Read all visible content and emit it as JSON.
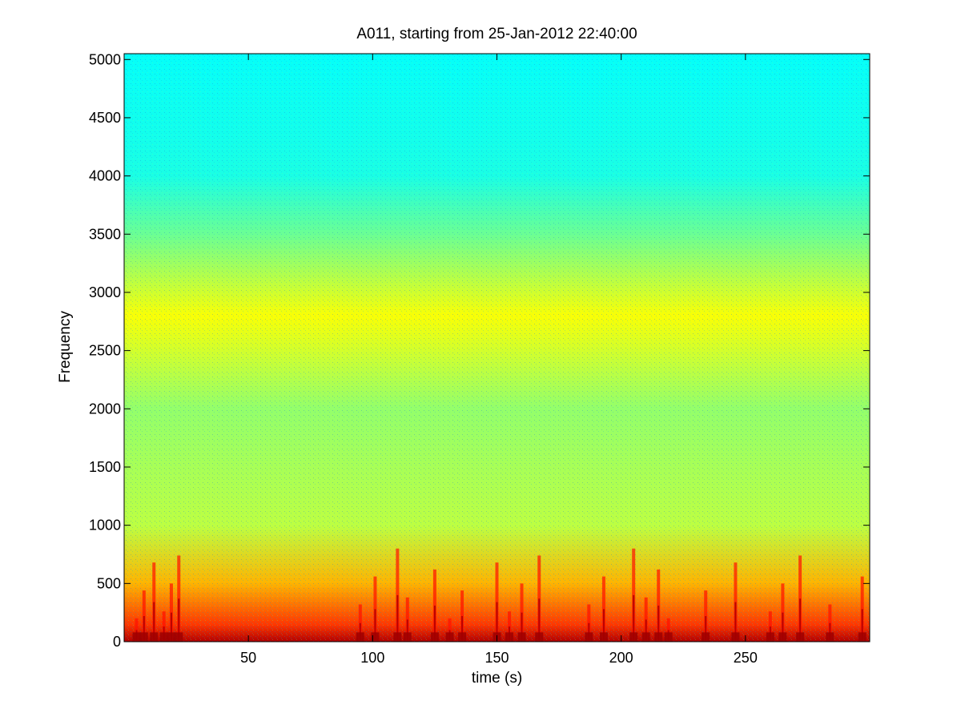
{
  "chart_data": {
    "type": "heatmap",
    "title": "A011, starting from 25-Jan-2012 22:40:00",
    "xlabel": "time (s)",
    "ylabel": "Frequency",
    "xlim": [
      0,
      300
    ],
    "ylim": [
      0,
      5050
    ],
    "x_ticks": [
      50,
      100,
      150,
      200,
      250
    ],
    "y_ticks": [
      0,
      500,
      1000,
      1500,
      2000,
      2500,
      3000,
      3500,
      4000,
      4500,
      5000
    ],
    "colormap": "jet",
    "grid": false,
    "legend": "none",
    "frequency_profile": [
      {
        "frequency": 0,
        "level": 0.95
      },
      {
        "frequency": 150,
        "level": 0.82
      },
      {
        "frequency": 500,
        "level": 0.7
      },
      {
        "frequency": 1000,
        "level": 0.56
      },
      {
        "frequency": 2000,
        "level": 0.52
      },
      {
        "frequency": 2800,
        "level": 0.62
      },
      {
        "frequency": 3500,
        "level": 0.48
      },
      {
        "frequency": 4000,
        "level": 0.4
      },
      {
        "frequency": 5050,
        "level": 0.38
      }
    ],
    "transient_events_s": [
      5,
      8,
      12,
      16,
      19,
      22,
      95,
      101,
      110,
      114,
      125,
      131,
      136,
      150,
      155,
      160,
      167,
      187,
      193,
      205,
      210,
      215,
      219,
      234,
      246,
      260,
      265,
      272,
      284,
      297
    ]
  }
}
